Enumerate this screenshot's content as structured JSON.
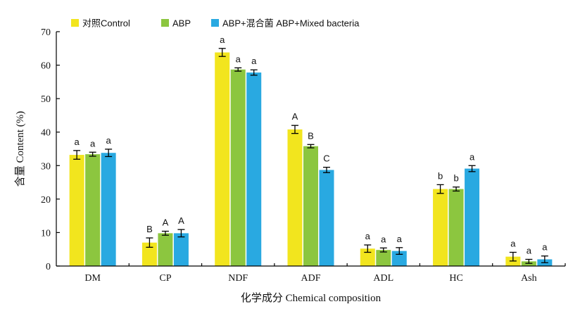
{
  "chart_data": {
    "type": "bar",
    "xlabel": "化学成分 Chemical composition",
    "ylabel": "含量 Content (%)",
    "ylim": [
      0,
      70
    ],
    "yticks": [
      0,
      10,
      20,
      30,
      40,
      50,
      60,
      70
    ],
    "categories": [
      "DM",
      "CP",
      "NDF",
      "ADF",
      "ADL",
      "HC",
      "Ash"
    ],
    "legend_position": "top-left",
    "series": [
      {
        "name": "对照Control",
        "color": "#f2e51e",
        "values": [
          33.2,
          7.0,
          63.8,
          40.8,
          5.2,
          23.0,
          2.8
        ],
        "errors": [
          1.3,
          1.4,
          1.2,
          1.2,
          1.1,
          1.3,
          1.3
        ],
        "labels": [
          "a",
          "B",
          "a",
          "A",
          "a",
          "b",
          "a"
        ]
      },
      {
        "name": "ABP",
        "color": "#8cc63f",
        "values": [
          33.4,
          9.8,
          58.7,
          35.8,
          4.8,
          23.0,
          1.4
        ],
        "errors": [
          0.6,
          0.6,
          0.5,
          0.5,
          0.6,
          0.6,
          0.6
        ],
        "labels": [
          "a",
          "A",
          "a",
          "B",
          "a",
          "b",
          "a"
        ]
      },
      {
        "name": "ABP+混合菌 ABP+Mixed bacteria",
        "color": "#29a9e1",
        "values": [
          33.8,
          9.8,
          57.8,
          28.7,
          4.5,
          29.1,
          2.0
        ],
        "errors": [
          1.1,
          1.1,
          0.8,
          0.8,
          1.0,
          0.9,
          1.0
        ],
        "labels": [
          "a",
          "A",
          "a",
          "C",
          "a",
          "a",
          "a"
        ]
      }
    ]
  }
}
